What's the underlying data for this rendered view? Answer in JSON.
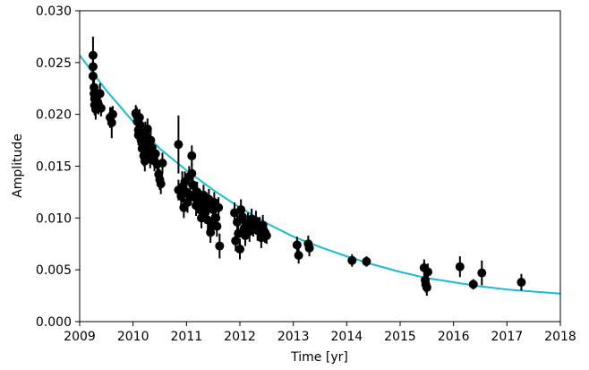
{
  "chart_data": {
    "type": "scatter",
    "xlabel": "Time [yr]",
    "ylabel": "Amplitude",
    "xlim": [
      2009,
      2018
    ],
    "ylim": [
      0,
      0.03
    ],
    "xticks": [
      2009,
      2010,
      2011,
      2012,
      2013,
      2014,
      2015,
      2016,
      2017,
      2018
    ],
    "xtick_labels": [
      "2009",
      "2010",
      "2011",
      "2012",
      "2013",
      "2014",
      "2015",
      "2016",
      "2017",
      "2018"
    ],
    "yticks": [
      0.0,
      0.005,
      0.01,
      0.015,
      0.02,
      0.025,
      0.03
    ],
    "ytick_labels": [
      "0.000",
      "0.005",
      "0.010",
      "0.015",
      "0.020",
      "0.025",
      "0.030"
    ],
    "grid": false,
    "colors": {
      "points": "#000000",
      "errorbars": "#000000",
      "fit_line": "#17becf",
      "axes": "#000000"
    },
    "series": [
      {
        "type": "scatter-errorbar",
        "points": [
          [
            2009.25,
            0.0257,
            0.0018
          ],
          [
            2009.25,
            0.0246,
            0.0015
          ],
          [
            2009.25,
            0.0237,
            0.0015
          ],
          [
            2009.27,
            0.0226,
            0.001
          ],
          [
            2009.27,
            0.022,
            0.001
          ],
          [
            2009.28,
            0.0215,
            0.001
          ],
          [
            2009.28,
            0.0209,
            0.001
          ],
          [
            2009.3,
            0.0205,
            0.001
          ],
          [
            2009.32,
            0.0218,
            0.001
          ],
          [
            2009.35,
            0.021,
            0.001
          ],
          [
            2009.38,
            0.022,
            0.001
          ],
          [
            2009.4,
            0.0206,
            0.0008
          ],
          [
            2009.57,
            0.0197,
            0.001
          ],
          [
            2009.6,
            0.0192,
            0.0015
          ],
          [
            2009.62,
            0.02,
            0.0008
          ],
          [
            2010.05,
            0.0201,
            0.0008
          ],
          [
            2010.07,
            0.0199,
            0.0008
          ],
          [
            2010.08,
            0.0193,
            0.001
          ],
          [
            2010.1,
            0.0185,
            0.001
          ],
          [
            2010.1,
            0.018,
            0.001
          ],
          [
            2010.12,
            0.0197,
            0.0008
          ],
          [
            2010.13,
            0.019,
            0.001
          ],
          [
            2010.15,
            0.0175,
            0.001
          ],
          [
            2010.17,
            0.0167,
            0.001
          ],
          [
            2010.18,
            0.0172,
            0.001
          ],
          [
            2010.2,
            0.016,
            0.001
          ],
          [
            2010.22,
            0.0155,
            0.001
          ],
          [
            2010.23,
            0.0183,
            0.001
          ],
          [
            2010.25,
            0.0178,
            0.001
          ],
          [
            2010.27,
            0.0186,
            0.001
          ],
          [
            2010.28,
            0.017,
            0.001
          ],
          [
            2010.3,
            0.0163,
            0.001
          ],
          [
            2010.32,
            0.0158,
            0.001
          ],
          [
            2010.33,
            0.0175,
            0.001
          ],
          [
            2010.35,
            0.0168,
            0.001
          ],
          [
            2010.4,
            0.0155,
            0.001
          ],
          [
            2010.42,
            0.0162,
            0.0008
          ],
          [
            2010.45,
            0.0152,
            0.001
          ],
          [
            2010.48,
            0.0142,
            0.001
          ],
          [
            2010.5,
            0.0137,
            0.001
          ],
          [
            2010.52,
            0.0133,
            0.001
          ],
          [
            2010.55,
            0.0153,
            0.001
          ],
          [
            2010.85,
            0.0171,
            0.0028
          ],
          [
            2010.85,
            0.0127,
            0.001
          ],
          [
            2010.9,
            0.0121,
            0.001
          ],
          [
            2010.92,
            0.013,
            0.0015
          ],
          [
            2010.95,
            0.011,
            0.001
          ],
          [
            2010.97,
            0.0135,
            0.001
          ],
          [
            2011.0,
            0.0125,
            0.001
          ],
          [
            2011.02,
            0.0115,
            0.001
          ],
          [
            2011.05,
            0.014,
            0.001
          ],
          [
            2011.07,
            0.0122,
            0.001
          ],
          [
            2011.1,
            0.016,
            0.001
          ],
          [
            2011.1,
            0.0143,
            0.001
          ],
          [
            2011.12,
            0.0132,
            0.001
          ],
          [
            2011.15,
            0.012,
            0.001
          ],
          [
            2011.18,
            0.0112,
            0.001
          ],
          [
            2011.2,
            0.0125,
            0.001
          ],
          [
            2011.22,
            0.0118,
            0.001
          ],
          [
            2011.25,
            0.0108,
            0.001
          ],
          [
            2011.28,
            0.01,
            0.001
          ],
          [
            2011.3,
            0.0115,
            0.001
          ],
          [
            2011.32,
            0.0122,
            0.001
          ],
          [
            2011.35,
            0.0105,
            0.001
          ],
          [
            2011.38,
            0.0112,
            0.001
          ],
          [
            2011.4,
            0.0098,
            0.001
          ],
          [
            2011.42,
            0.0118,
            0.001
          ],
          [
            2011.45,
            0.0086,
            0.001
          ],
          [
            2011.48,
            0.0093,
            0.001
          ],
          [
            2011.5,
            0.0108,
            0.001
          ],
          [
            2011.52,
            0.0115,
            0.001
          ],
          [
            2011.55,
            0.01,
            0.001
          ],
          [
            2011.57,
            0.0092,
            0.001
          ],
          [
            2011.6,
            0.011,
            0.001
          ],
          [
            2011.62,
            0.0073,
            0.0012
          ],
          [
            2011.9,
            0.0105,
            0.001
          ],
          [
            2011.92,
            0.0078,
            0.001
          ],
          [
            2011.95,
            0.0096,
            0.001
          ],
          [
            2011.97,
            0.0085,
            0.001
          ],
          [
            2012.0,
            0.007,
            0.001
          ],
          [
            2012.02,
            0.0108,
            0.001
          ],
          [
            2012.05,
            0.0101,
            0.001
          ],
          [
            2012.08,
            0.009,
            0.001
          ],
          [
            2012.1,
            0.0083,
            0.001
          ],
          [
            2012.15,
            0.0095,
            0.001
          ],
          [
            2012.18,
            0.0087,
            0.001
          ],
          [
            2012.22,
            0.0099,
            0.001
          ],
          [
            2012.25,
            0.0092,
            0.001
          ],
          [
            2012.3,
            0.0097,
            0.001
          ],
          [
            2012.33,
            0.0088,
            0.001
          ],
          [
            2012.37,
            0.0091,
            0.001
          ],
          [
            2012.4,
            0.0081,
            0.001
          ],
          [
            2012.43,
            0.0093,
            0.001
          ],
          [
            2012.47,
            0.0086,
            0.001
          ],
          [
            2012.5,
            0.0083,
            0.0008
          ],
          [
            2013.07,
            0.0074,
            0.0008
          ],
          [
            2013.1,
            0.0064,
            0.0008
          ],
          [
            2013.28,
            0.0075,
            0.0008
          ],
          [
            2013.3,
            0.0071,
            0.0008
          ],
          [
            2014.1,
            0.0059,
            0.0006
          ],
          [
            2014.37,
            0.0058,
            0.0005
          ],
          [
            2015.45,
            0.0052,
            0.0008
          ],
          [
            2015.47,
            0.004,
            0.001
          ],
          [
            2015.48,
            0.0036,
            0.0008
          ],
          [
            2015.5,
            0.0033,
            0.0008
          ],
          [
            2015.52,
            0.0048,
            0.0008
          ],
          [
            2016.12,
            0.0053,
            0.001
          ],
          [
            2016.37,
            0.0036,
            0.0005
          ],
          [
            2016.53,
            0.0047,
            0.0012
          ],
          [
            2017.27,
            0.0038,
            0.0008
          ]
        ]
      },
      {
        "type": "line",
        "x": [
          2009.0,
          2009.5,
          2010.0,
          2010.5,
          2011.0,
          2011.5,
          2012.0,
          2012.5,
          2013.0,
          2013.5,
          2014.0,
          2014.5,
          2015.0,
          2015.5,
          2016.0,
          2016.5,
          2017.0,
          2017.5,
          2018.0
        ],
        "y": [
          0.0257,
          0.0223,
          0.0193,
          0.0167,
          0.0146,
          0.0127,
          0.011,
          0.0095,
          0.0082,
          0.0072,
          0.0063,
          0.0055,
          0.0048,
          0.0042,
          0.0038,
          0.0034,
          0.0031,
          0.0029,
          0.0027
        ]
      }
    ]
  }
}
